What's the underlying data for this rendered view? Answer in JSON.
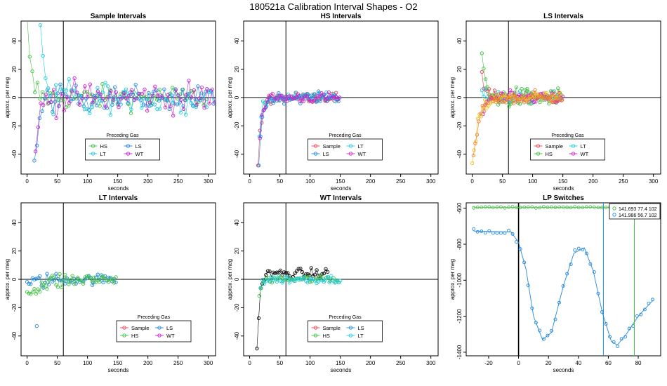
{
  "figure": {
    "title": "180521a   Calibration Interval Shapes - O2"
  },
  "colors": {
    "HS": "#44c044",
    "LS": "#2288dd",
    "LT": "#22ccdd",
    "WT": "#cc22cc",
    "Sample": "#ee4455",
    "black": "#000000",
    "yellow": "#f0c020",
    "orange": "#f08030"
  },
  "chart_data": [
    {
      "type": "scatter",
      "title": "Sample Intervals",
      "xlabel": "seconds",
      "ylabel": "approx. per meg",
      "xlim": [
        -10,
        312
      ],
      "ylim": [
        -54,
        54
      ],
      "xticks": [
        0,
        50,
        100,
        150,
        200,
        250,
        300
      ],
      "yticks": [
        -40,
        -20,
        0,
        20,
        40
      ],
      "hline": 0,
      "vline": 60,
      "legend": {
        "title": "Preceding Gas",
        "position": "bottom-center",
        "entries": [
          "HS",
          "LS",
          "LT",
          "WT"
        ],
        "columns": 2
      },
      "series": [
        {
          "name": "HS",
          "color": "#44c044",
          "start": [
            0,
            50
          ],
          "tau": 6,
          "n": 70,
          "spacing": 4.3,
          "noise": 6,
          "osc": 0
        },
        {
          "name": "LS",
          "color": "#2288dd",
          "start": [
            12,
            -50
          ],
          "tau": 8,
          "n": 70,
          "spacing": 4.3,
          "noise": 6,
          "osc": 0
        },
        {
          "name": "LT",
          "color": "#22ccdd",
          "start": [
            22,
            52
          ],
          "tau": 10,
          "n": 70,
          "spacing": 4.3,
          "noise": 7,
          "osc": 12
        },
        {
          "name": "WT",
          "color": "#cc22cc",
          "start": [
            14,
            -52
          ],
          "tau": 5,
          "n": 70,
          "spacing": 4.3,
          "noise": 8,
          "osc": 0
        }
      ]
    },
    {
      "type": "scatter",
      "title": "HS Intervals",
      "xlabel": "seconds",
      "ylabel": "approx. per meg",
      "xlim": [
        -10,
        312
      ],
      "ylim": [
        -54,
        54
      ],
      "xticks": [
        0,
        50,
        100,
        150,
        200,
        250,
        300
      ],
      "yticks": [
        -40,
        -20,
        0,
        20,
        40
      ],
      "hline": 0,
      "vline": 60,
      "legend": {
        "title": "Preceding Gas",
        "position": "bottom-center",
        "entries": [
          "Sample",
          "LT",
          "LS",
          "WT"
        ],
        "columns": 2
      },
      "series": [
        {
          "name": "Sample",
          "color": "#ee4455",
          "start": [
            14,
            -50
          ],
          "tau": 5,
          "n": 45,
          "spacing": 3,
          "noise": 2.5,
          "osc": 0
        },
        {
          "name": "LT",
          "color": "#22ccdd",
          "start": [
            16,
            -30
          ],
          "tau": 5,
          "n": 45,
          "spacing": 3,
          "noise": 2.5,
          "osc": 0
        },
        {
          "name": "LS",
          "color": "#2288dd",
          "start": [
            15,
            -48
          ],
          "tau": 5,
          "n": 45,
          "spacing": 3,
          "noise": 2.5,
          "osc": 0
        },
        {
          "name": "WT",
          "color": "#cc22cc",
          "start": [
            17,
            -25
          ],
          "tau": 5,
          "n": 45,
          "spacing": 3,
          "noise": 2.5,
          "osc": 0
        }
      ]
    },
    {
      "type": "scatter",
      "title": "LS Intervals",
      "xlabel": "seconds",
      "ylabel": "approx. per meg",
      "xlim": [
        -10,
        312
      ],
      "ylim": [
        -54,
        54
      ],
      "xticks": [
        0,
        50,
        100,
        150,
        200,
        250,
        300
      ],
      "yticks": [
        -40,
        -20,
        0,
        20,
        40
      ],
      "hline": 0,
      "vline": 60,
      "legend": {
        "title": "Preceding Gas",
        "position": "bottom-center",
        "entries": [
          "Sample",
          "LT",
          "HS",
          "WT"
        ],
        "columns": 2
      },
      "series": [
        {
          "name": "Sample",
          "color": "#ee4455",
          "start": [
            16,
            14
          ],
          "tau": 5,
          "n": 45,
          "spacing": 3,
          "noise": 3,
          "osc": 0
        },
        {
          "name": "LT",
          "color": "#22ccdd",
          "start": [
            16,
            5
          ],
          "tau": 5,
          "n": 45,
          "spacing": 3,
          "noise": 3,
          "osc": 0
        },
        {
          "name": "HS",
          "color": "#44c044",
          "start": [
            16,
            33
          ],
          "tau": 4,
          "n": 45,
          "spacing": 3,
          "noise": 5,
          "osc": 0
        },
        {
          "name": "WT",
          "color": "#cc22cc",
          "start": [
            18,
            -10
          ],
          "tau": 5,
          "n": 45,
          "spacing": 3,
          "noise": 3,
          "osc": 0
        },
        {
          "name": "",
          "color": "#f0c020",
          "start": [
            0,
            -52
          ],
          "tau": 10,
          "n": 50,
          "spacing": 3,
          "noise": 3,
          "osc": 0
        },
        {
          "name": "",
          "color": "#f08030",
          "start": [
            2,
            -45
          ],
          "tau": 10,
          "n": 50,
          "spacing": 3,
          "noise": 3,
          "osc": 0
        }
      ]
    },
    {
      "type": "scatter",
      "title": "LT Intervals",
      "xlabel": "seconds",
      "ylabel": "approx. per meg",
      "xlim": [
        -10,
        312
      ],
      "ylim": [
        -54,
        54
      ],
      "xticks": [
        0,
        50,
        100,
        150,
        200,
        250,
        300
      ],
      "yticks": [
        -40,
        -20,
        0,
        20,
        40
      ],
      "hline": 0,
      "vline": 60,
      "legend": {
        "title": "Preceding Gas",
        "position": "bottom-right",
        "entries": [
          "Sample",
          "LS",
          "HS",
          "WT"
        ],
        "columns": 2
      },
      "series": [
        {
          "name": "LS",
          "color": "#2288dd",
          "start": [
            0,
            -4
          ],
          "tau": 20,
          "n": 50,
          "spacing": 3,
          "noise": 2.5,
          "osc": 0
        },
        {
          "name": "HS",
          "color": "#44c044",
          "start": [
            0,
            -10
          ],
          "tau": 25,
          "n": 50,
          "spacing": 3,
          "noise": 3,
          "osc": 0
        }
      ],
      "outliers": [
        {
          "series": "LS",
          "x": 16,
          "y": -33
        }
      ]
    },
    {
      "type": "scatter",
      "title": "WT Intervals",
      "xlabel": "seconds",
      "ylabel": "approx. per meg",
      "xlim": [
        -10,
        312
      ],
      "ylim": [
        -54,
        54
      ],
      "xticks": [
        0,
        50,
        100,
        150,
        200,
        250,
        300
      ],
      "yticks": [
        -40,
        -20,
        0,
        20,
        40
      ],
      "hline": 0,
      "vline": 60,
      "legend": {
        "title": "Preceding Gas",
        "position": "bottom-center",
        "entries": [
          "Sample",
          "LS",
          "HS",
          "LT"
        ],
        "columns": 2
      },
      "series": [
        {
          "name": "black",
          "color": "#000000",
          "start": [
            12,
            -55
          ],
          "tau": 4,
          "n": 40,
          "spacing": 3,
          "noise": 2.5,
          "osc": 0,
          "offset": 4
        },
        {
          "name": "HS",
          "color": "#44c044",
          "start": [
            16,
            -10
          ],
          "tau": 4,
          "n": 45,
          "spacing": 3,
          "noise": 2,
          "osc": 0
        },
        {
          "name": "LT",
          "color": "#22ccdd",
          "start": [
            18,
            -5
          ],
          "tau": 4,
          "n": 45,
          "spacing": 3,
          "noise": 2,
          "osc": 0
        }
      ]
    },
    {
      "type": "scatter",
      "title": "LP Switches",
      "xlabel": "seconds",
      "ylabel": "approx. per meg",
      "xlim": [
        -35,
        95
      ],
      "ylim": [
        -1420,
        -570
      ],
      "xticks": [
        -20,
        0,
        20,
        40,
        60,
        80
      ],
      "yticks": [
        -1400,
        -1200,
        -1000,
        -800,
        -600
      ],
      "vline": 0,
      "legend": {
        "title": "",
        "position": "top-right",
        "entries": [
          "141.693 77.4 102",
          "141.986 56.7 102"
        ],
        "columns": 1
      },
      "markers": [
        {
          "series": "141.693 77.4 102",
          "x": 77.4
        },
        {
          "series": "141.986 56.7 102",
          "x": 56.7
        }
      ],
      "series": [
        {
          "name": "141.693 77.4 102",
          "color": "#44c044",
          "shape": "flat",
          "level": -595,
          "x0": -30,
          "x1": 90,
          "step": 2.6
        },
        {
          "name": "141.986 56.7 102",
          "color": "#2288dd",
          "shape": "wave",
          "curve": [
            [
              -30,
              -727
            ],
            [
              -5,
              -732
            ],
            [
              0,
              -790
            ],
            [
              5,
              -940
            ],
            [
              10,
              -1200
            ],
            [
              16,
              -1330
            ],
            [
              22,
              -1290
            ],
            [
              30,
              -1030
            ],
            [
              37,
              -850
            ],
            [
              44,
              -820
            ],
            [
              50,
              -950
            ],
            [
              56,
              -1180
            ],
            [
              62,
              -1340
            ],
            [
              66,
              -1360
            ],
            [
              72,
              -1300
            ],
            [
              80,
              -1200
            ],
            [
              90,
              -1110
            ]
          ]
        }
      ]
    }
  ]
}
